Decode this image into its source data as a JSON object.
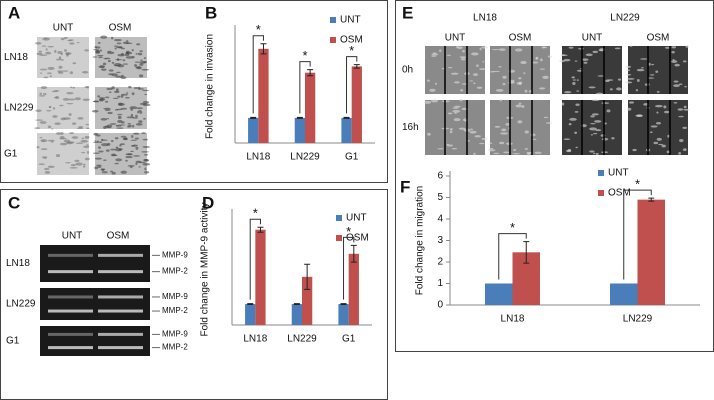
{
  "panel_a": {
    "letter": "A",
    "columns": [
      "UNT",
      "OSM"
    ],
    "rows": [
      "LN18",
      "LN229",
      "G1"
    ]
  },
  "panel_c": {
    "letter": "C",
    "columns": [
      "UNT",
      "OSM"
    ],
    "rows": [
      "LN18",
      "LN229",
      "G1"
    ],
    "bands": [
      "MMP-9",
      "MMP-2"
    ]
  },
  "panel_e": {
    "letter": "E",
    "lines": [
      "LN18",
      "LN229"
    ],
    "columns": [
      "UNT",
      "OSM",
      "UNT",
      "OSM"
    ],
    "rows": [
      "0h",
      "16h"
    ]
  },
  "chart_data": [
    {
      "type": "bar",
      "label": "B",
      "y_label": "Fold change in invasion",
      "categories": [
        "LN18",
        "LN229",
        "G1"
      ],
      "series": [
        {
          "name": "UNT",
          "color": "#4a7ebb",
          "values": [
            1,
            1,
            1
          ],
          "errors": [
            0.02,
            0.02,
            0.02
          ]
        },
        {
          "name": "OSM",
          "color": "#c0504d",
          "values": [
            3.75,
            2.8,
            3.05
          ],
          "errors": [
            0.2,
            0.12,
            0.07
          ]
        }
      ],
      "significance": [
        "*",
        "*",
        "*"
      ],
      "ylim": [
        0,
        4.5
      ]
    },
    {
      "type": "bar",
      "label": "D",
      "y_label": "Fold change in MMP-9 activity",
      "categories": [
        "LN18",
        "LN229",
        "G1"
      ],
      "series": [
        {
          "name": "UNT",
          "color": "#4a7ebb",
          "values": [
            1,
            1,
            1
          ],
          "errors": [
            0.02,
            0.02,
            0.02
          ]
        },
        {
          "name": "OSM",
          "color": "#c0504d",
          "values": [
            4.55,
            2.3,
            3.4
          ],
          "errors": [
            0.12,
            0.6,
            0.4
          ]
        }
      ],
      "significance": [
        "*",
        null,
        "*"
      ],
      "ylim": [
        0,
        5.3
      ]
    },
    {
      "type": "bar",
      "label": "F",
      "y_label": "Fold change in migration",
      "categories": [
        "LN18",
        "LN229"
      ],
      "series": [
        {
          "name": "UNT",
          "color": "#4a7ebb",
          "values": [
            1,
            1
          ]
        },
        {
          "name": "OSM",
          "color": "#c0504d",
          "values": [
            2.45,
            4.9
          ],
          "errors": [
            0.5,
            0.07
          ]
        }
      ],
      "significance": [
        "*",
        "*"
      ],
      "ylim": [
        0,
        6
      ],
      "yticks": [
        0,
        1,
        2,
        3,
        4,
        5,
        6
      ]
    }
  ]
}
